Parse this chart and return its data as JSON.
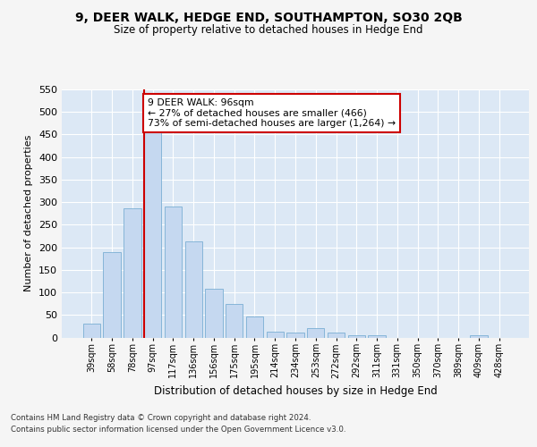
{
  "title": "9, DEER WALK, HEDGE END, SOUTHAMPTON, SO30 2QB",
  "subtitle": "Size of property relative to detached houses in Hedge End",
  "xlabel": "Distribution of detached houses by size in Hedge End",
  "ylabel": "Number of detached properties",
  "categories": [
    "39sqm",
    "58sqm",
    "78sqm",
    "97sqm",
    "117sqm",
    "136sqm",
    "156sqm",
    "175sqm",
    "195sqm",
    "214sqm",
    "234sqm",
    "253sqm",
    "272sqm",
    "292sqm",
    "311sqm",
    "331sqm",
    "350sqm",
    "370sqm",
    "389sqm",
    "409sqm",
    "428sqm"
  ],
  "values": [
    30,
    190,
    287,
    460,
    291,
    213,
    108,
    74,
    46,
    13,
    11,
    21,
    10,
    5,
    5,
    0,
    0,
    0,
    0,
    5,
    0
  ],
  "bar_color": "#c5d8f0",
  "bar_edge_color": "#7bafd4",
  "highlight_bar_index": 3,
  "highlight_color": "#cc0000",
  "annotation_text": "9 DEER WALK: 96sqm\n← 27% of detached houses are smaller (466)\n73% of semi-detached houses are larger (1,264) →",
  "annotation_box_color": "#ffffff",
  "annotation_box_edge": "#cc0000",
  "ylim": [
    0,
    550
  ],
  "yticks": [
    0,
    50,
    100,
    150,
    200,
    250,
    300,
    350,
    400,
    450,
    500,
    550
  ],
  "background_color": "#dce8f5",
  "grid_color": "#ffffff",
  "fig_background": "#f5f5f5",
  "footer_line1": "Contains HM Land Registry data © Crown copyright and database right 2024.",
  "footer_line2": "Contains public sector information licensed under the Open Government Licence v3.0."
}
